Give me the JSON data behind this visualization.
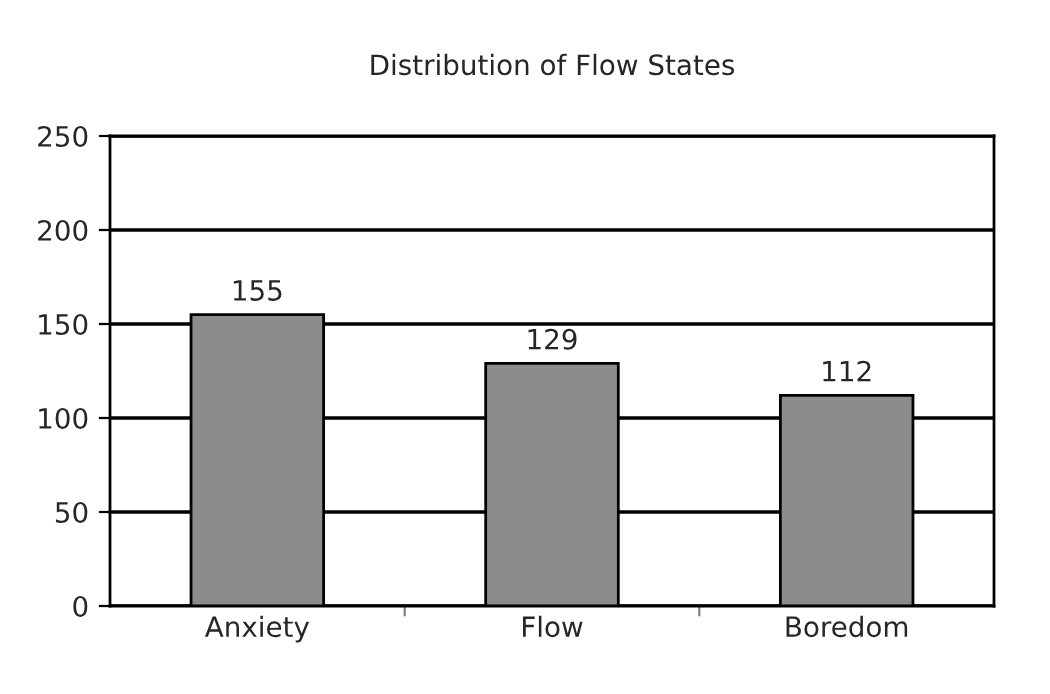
{
  "chart_data": {
    "type": "bar",
    "title": "Distribution of Flow States",
    "categories": [
      "Anxiety",
      "Flow",
      "Boredom"
    ],
    "values": [
      155,
      129,
      112
    ],
    "color": "#8c8c8c",
    "ylim": [
      0,
      250
    ],
    "yticks": [
      0,
      50,
      100,
      150,
      200,
      250
    ],
    "grid": "y",
    "data_labels": true
  }
}
